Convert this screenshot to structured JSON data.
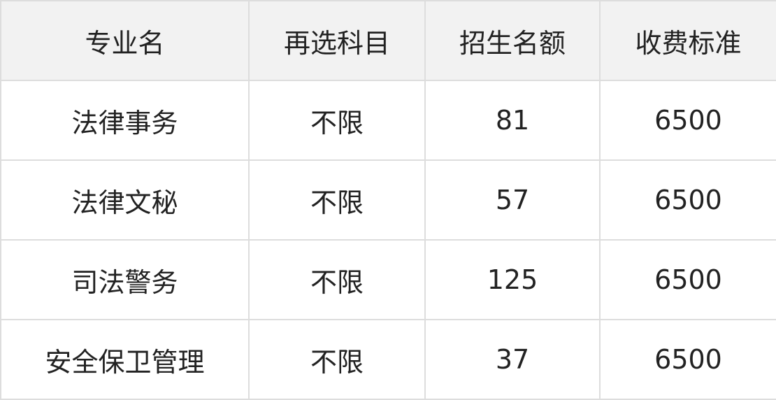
{
  "table": {
    "headers": [
      "专业名",
      "再选科目",
      "招生名额",
      "收费标准"
    ],
    "rows": [
      [
        "法律事务",
        "不限",
        "81",
        "6500"
      ],
      [
        "法律文秘",
        "不限",
        "57",
        "6500"
      ],
      [
        "司法警务",
        "不限",
        "125",
        "6500"
      ],
      [
        "安全保卫管理",
        "不限",
        "37",
        "6500"
      ]
    ]
  }
}
